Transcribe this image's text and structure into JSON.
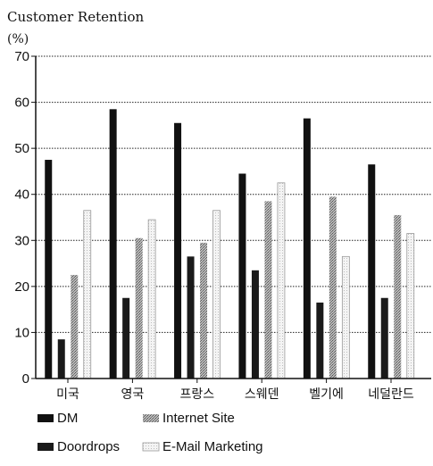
{
  "chart_data": {
    "type": "bar",
    "title": "Customer Retention",
    "ylabel": "(%)",
    "xlabel": "",
    "ylim": [
      0,
      70
    ],
    "yticks": [
      0,
      10,
      20,
      30,
      40,
      50,
      60,
      70
    ],
    "grid": "horizontal dotted",
    "legend_position": "bottom-left",
    "categories": [
      "미국",
      "영국",
      "프랑스",
      "스웨덴",
      "벨기에",
      "네덜란드"
    ],
    "series": [
      {
        "name": "DM",
        "values": [
          47.5,
          58.5,
          55.5,
          44.5,
          56.5,
          46.5
        ],
        "color": "#111111",
        "pattern": "solid"
      },
      {
        "name": "Doordrops",
        "values": [
          8.5,
          17.5,
          26.5,
          23.5,
          16.5,
          17.5
        ],
        "color": "#1a1a1a",
        "pattern": "solid"
      },
      {
        "name": "Internet Site",
        "values": [
          22.5,
          30.5,
          29.5,
          38.5,
          39.5,
          35.5
        ],
        "color": "#9a9a9a",
        "pattern": "stipple"
      },
      {
        "name": "E-Mail Marketing",
        "values": [
          36.5,
          34.5,
          36.5,
          42.5,
          26.5,
          31.5
        ],
        "color": "#e6e6e6",
        "pattern": "light"
      }
    ]
  }
}
